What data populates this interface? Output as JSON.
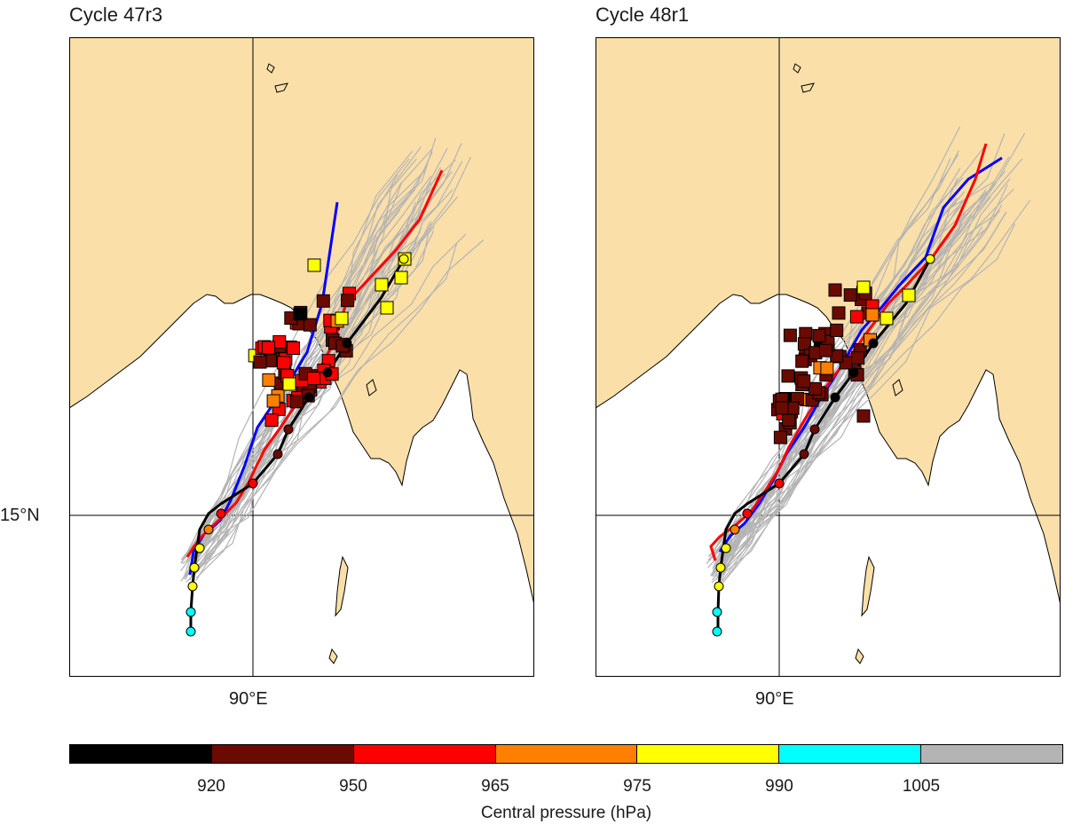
{
  "panels": [
    {
      "title": "Cycle 47r3",
      "lon_label": "90°E",
      "lat_label": "15°N"
    },
    {
      "title": "Cycle 48r1",
      "lon_label": "90°E",
      "lat_label": ""
    }
  ],
  "legend": {
    "colors": [
      "#000000",
      "#6b0a00",
      "#ff0000",
      "#ff8000",
      "#ffff00",
      "#00ffff",
      "#b4b4b4"
    ],
    "ticks": [
      "920",
      "950",
      "965",
      "975",
      "990",
      "1005"
    ],
    "title": "Central pressure (hPa)"
  },
  "colors": {
    "land": "#fbdfa9",
    "sea": "#ffffff",
    "blue_track": "#0000ff",
    "red_track": "#ff0000",
    "best_track": "#000000",
    "ensemble": "#b4b4b4"
  }
}
